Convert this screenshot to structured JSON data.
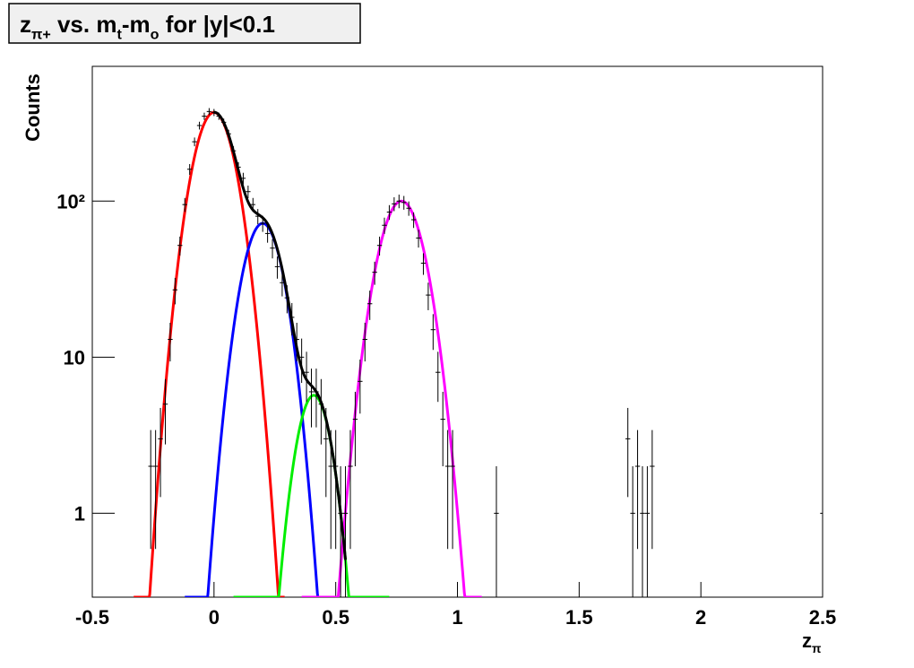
{
  "chart_data": {
    "type": "histogram-fit",
    "title": [
      {
        "text": "z"
      },
      {
        "text": "π+",
        "sub": true
      },
      {
        "text": " vs. m"
      },
      {
        "text": "t",
        "sub": true
      },
      {
        "text": "-m"
      },
      {
        "text": "o",
        "sub": true
      },
      {
        "text": " for |y|<0.1"
      }
    ],
    "xlabel": [
      {
        "text": "z"
      },
      {
        "text": "π",
        "sub": true
      }
    ],
    "ylabel": "Counts",
    "log_y": true,
    "xlim": [
      -0.5,
      2.5
    ],
    "ylim": [
      0.29,
      730
    ],
    "xticks": [
      -0.5,
      0,
      0.5,
      1,
      1.5,
      2,
      2.5
    ],
    "yticks": [
      1,
      10,
      {
        "value": 100,
        "label": "10²"
      }
    ],
    "color": "#000000",
    "x": [
      -0.26,
      -0.24,
      -0.22,
      -0.2,
      -0.18,
      -0.16,
      -0.14,
      -0.12,
      -0.1,
      -0.08,
      -0.06,
      -0.04,
      -0.02,
      0,
      0.02,
      0.04,
      0.06,
      0.08,
      0.1,
      0.12,
      0.14,
      0.16,
      0.18,
      0.2,
      0.22,
      0.24,
      0.26,
      0.28,
      0.3,
      0.32,
      0.34,
      0.36,
      0.38,
      0.4,
      0.42,
      0.44,
      0.46,
      0.48,
      0.5,
      0.52,
      0.54,
      0.56,
      0.58,
      0.6,
      0.62,
      0.64,
      0.66,
      0.68,
      0.7,
      0.72,
      0.74,
      0.76,
      0.78,
      0.8,
      0.82,
      0.84,
      0.86,
      0.88,
      0.9,
      0.92,
      0.94,
      0.96,
      0.98,
      1.16,
      1.7,
      1.72,
      1.74,
      1.76,
      1.78,
      1.8,
      2.5
    ],
    "values": [
      2,
      2,
      3,
      5,
      13,
      27,
      52,
      95,
      160,
      240,
      305,
      350,
      375,
      370,
      350,
      320,
      270,
      210,
      165,
      140,
      115,
      95,
      80,
      72,
      62,
      50,
      38,
      30,
      24,
      18,
      13,
      10,
      8,
      6,
      6,
      5,
      3,
      2,
      2,
      1,
      1,
      2,
      4,
      7,
      13,
      22,
      35,
      52,
      70,
      85,
      96,
      100,
      98,
      90,
      76,
      58,
      40,
      25,
      15,
      8,
      4,
      2,
      2,
      1,
      3,
      1,
      2,
      1,
      1,
      2,
      1
    ],
    "errors": [
      1.41,
      1.41,
      1.73,
      2.24,
      3.61,
      5.2,
      7.21,
      9.75,
      12.65,
      15.49,
      17.46,
      18.71,
      19.36,
      19.24,
      18.71,
      17.89,
      16.43,
      14.49,
      12.85,
      11.83,
      10.72,
      9.75,
      8.94,
      8.49,
      7.87,
      7.07,
      6.16,
      5.48,
      4.9,
      4.24,
      3.61,
      3.16,
      2.83,
      2.45,
      2.45,
      2.24,
      1.73,
      1.41,
      1.41,
      1,
      1,
      1.41,
      2,
      2.65,
      3.61,
      4.69,
      5.92,
      7.21,
      8.37,
      9.22,
      9.8,
      10,
      9.9,
      9.49,
      8.72,
      7.62,
      6.32,
      5,
      3.87,
      2.83,
      2,
      1.41,
      1.41,
      1,
      1.73,
      1,
      1.41,
      1,
      1,
      1.41,
      1
    ],
    "fits": [
      {
        "color": "#ff0000",
        "amplitude": 370,
        "mean": 0,
        "sigma": 0.07,
        "range": [
          -0.33,
          0.29
        ]
      },
      {
        "color": "#0000ff",
        "amplitude": 72,
        "mean": 0.2,
        "sigma": 0.068,
        "range": [
          -0.12,
          0.43
        ]
      },
      {
        "color": "#00ee00",
        "amplitude": 5.7,
        "mean": 0.41,
        "sigma": 0.059,
        "range": [
          0.08,
          0.72
        ]
      },
      {
        "color": "#ff00ff",
        "amplitude": 100,
        "mean": 0.77,
        "sigma": 0.076,
        "range": [
          0.36,
          1.1
        ]
      }
    ],
    "total": {
      "color": "#000000",
      "components": [
        0,
        1,
        2
      ],
      "range": [
        0,
        0.54
      ]
    }
  }
}
